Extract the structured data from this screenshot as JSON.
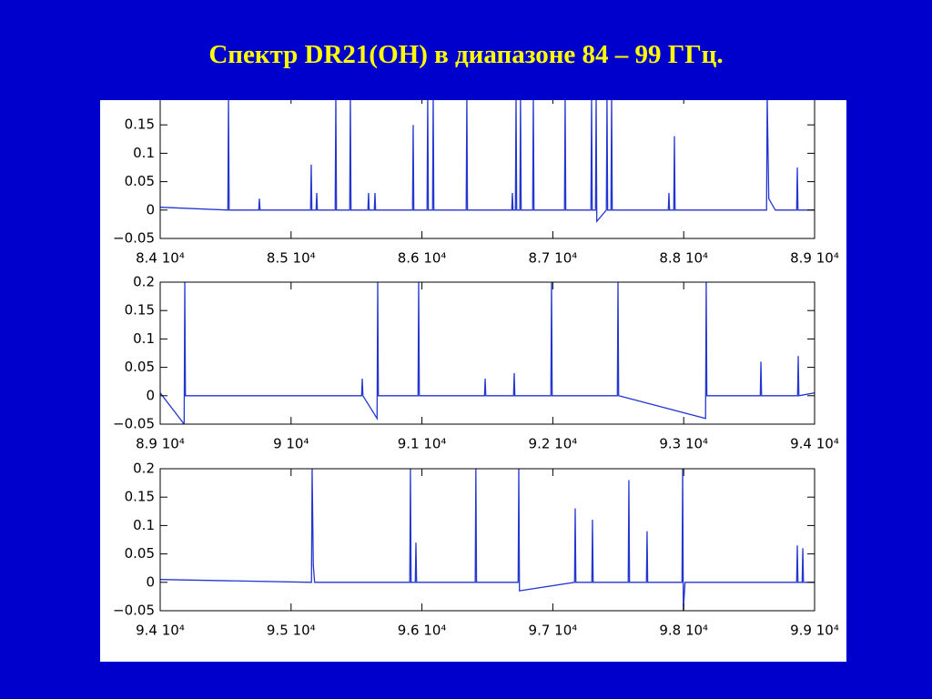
{
  "title": "Спектр DR21(OH) в диапазоне 84 – 99 ГГц.",
  "chart_data": [
    {
      "type": "line",
      "color": "#2436d0",
      "xlim": [
        84000,
        89000
      ],
      "xticks": [
        {
          "value": 84000,
          "label": "8.4 10⁴"
        },
        {
          "value": 85000,
          "label": "8.5 10⁴"
        },
        {
          "value": 86000,
          "label": "8.6 10⁴"
        },
        {
          "value": 87000,
          "label": "8.7 10⁴"
        },
        {
          "value": 88000,
          "label": "8.8 10⁴"
        },
        {
          "value": 89000,
          "label": "8.9 10⁴"
        }
      ],
      "ylim": [
        -0.05,
        0.2
      ],
      "yticks": [
        {
          "value": -0.05,
          "label": "−0.05"
        },
        0,
        0.05,
        0.1,
        0.15
      ],
      "x": [
        84000,
        84517,
        84522,
        84527,
        84753,
        84758,
        84763,
        85149,
        85154,
        85159,
        85191,
        85196,
        85201,
        85337,
        85342,
        85347,
        85448,
        85453,
        85458,
        85587,
        85592,
        85597,
        85636,
        85641,
        85646,
        85928,
        85933,
        85938,
        86039,
        86044,
        86049,
        86081,
        86086,
        86091,
        86338,
        86343,
        86348,
        86686,
        86691,
        86696,
        86714,
        86719,
        86724,
        86748,
        86753,
        86758,
        86846,
        86851,
        86856,
        87089,
        87094,
        87099,
        87291,
        87296,
        87301,
        87326,
        87331,
        87336,
        87409,
        87414,
        87419,
        87444,
        87449,
        87454,
        87882,
        87887,
        87892,
        87924,
        87929,
        87934,
        88633,
        88638,
        88650,
        88700,
        88863,
        88868,
        88873,
        89000
      ],
      "values": [
        0.005,
        0,
        0.2,
        0,
        0,
        0.02,
        0,
        0,
        0.08,
        0,
        0,
        0.03,
        0,
        0,
        0.2,
        0,
        0,
        0.2,
        0,
        0,
        0.03,
        0,
        0,
        0.03,
        0,
        0,
        0.15,
        0,
        0,
        0.2,
        0,
        0,
        0.2,
        0,
        0,
        0.2,
        0,
        0,
        0.03,
        0,
        0,
        0.2,
        0,
        0,
        0.2,
        0,
        0,
        0.2,
        0,
        0,
        0.2,
        0,
        0,
        0.2,
        0,
        0,
        0.2,
        -0.02,
        0,
        0.2,
        0,
        0,
        0.2,
        0,
        0,
        0.03,
        0,
        0,
        0.13,
        0,
        0,
        0.2,
        0.02,
        0,
        0,
        0.075,
        0,
        0
      ]
    },
    {
      "type": "line",
      "color": "#2436d0",
      "xlim": [
        89000,
        94000
      ],
      "xticks": [
        {
          "value": 89000,
          "label": "8.9 10⁴"
        },
        {
          "value": 90000,
          "label": "9 10⁴"
        },
        {
          "value": 91000,
          "label": "9.1 10⁴"
        },
        {
          "value": 92000,
          "label": "9.2 10⁴"
        },
        {
          "value": 93000,
          "label": "9.3 10⁴"
        },
        {
          "value": 94000,
          "label": "9.4 10⁴"
        }
      ],
      "ylim": [
        -0.05,
        0.2
      ],
      "yticks": [
        {
          "value": -0.05,
          "label": "−0.05"
        },
        0,
        0.05,
        0.1,
        0.15,
        0.2
      ],
      "x": [
        89000,
        89183,
        89188,
        89193,
        90539,
        90544,
        90549,
        90657,
        90662,
        90667,
        90970,
        90975,
        90980,
        91478,
        91483,
        91488,
        91700,
        91705,
        91710,
        91985,
        91990,
        91995,
        92493,
        92498,
        92503,
        93167,
        93172,
        93177,
        93585,
        93590,
        93595,
        93870,
        93875,
        93880,
        94000
      ],
      "values": [
        0.005,
        -0.05,
        0.2,
        0,
        0,
        0.03,
        0,
        -0.04,
        0.2,
        0,
        0,
        0.2,
        0,
        0,
        0.03,
        0,
        0,
        0.04,
        0,
        0,
        0.2,
        0,
        0,
        0.2,
        0,
        -0.04,
        0.2,
        0,
        0,
        0.06,
        0,
        0,
        0.07,
        0,
        0.005
      ]
    },
    {
      "type": "line",
      "color": "#2436d0",
      "xlim": [
        94000,
        99000
      ],
      "xticks": [
        {
          "value": 94000,
          "label": "9.4 10⁴"
        },
        {
          "value": 95000,
          "label": "9.5 10⁴"
        },
        {
          "value": 96000,
          "label": "9.6 10⁴"
        },
        {
          "value": 97000,
          "label": "9.7 10⁴"
        },
        {
          "value": 98000,
          "label": "9.8 10⁴"
        },
        {
          "value": 99000,
          "label": "9.9 10⁴"
        }
      ],
      "ylim": [
        -0.05,
        0.2
      ],
      "yticks": [
        {
          "value": -0.05,
          "label": "−0.05"
        },
        0,
        0.05,
        0.1,
        0.15,
        0.2
      ],
      "x": [
        94000,
        95156,
        95161,
        95170,
        95180,
        95907,
        95912,
        95917,
        95949,
        95954,
        95959,
        96407,
        96412,
        96417,
        96735,
        96740,
        96745,
        97166,
        97171,
        97176,
        97298,
        97303,
        97308,
        97576,
        97581,
        97586,
        97715,
        97720,
        97725,
        97987,
        97992,
        97997,
        98010,
        98863,
        98868,
        98873,
        98905,
        98910,
        98915,
        99000
      ],
      "values": [
        0.005,
        0,
        0.2,
        0.03,
        0,
        0,
        0.2,
        0,
        0,
        0.07,
        0,
        0,
        0.2,
        0,
        0,
        0.2,
        -0.015,
        0,
        0.13,
        0,
        0,
        0.11,
        0,
        0,
        0.18,
        0,
        0,
        0.09,
        0,
        0,
        0.2,
        -0.05,
        0,
        0,
        0.065,
        0,
        0,
        0.06,
        0,
        0
      ]
    }
  ]
}
